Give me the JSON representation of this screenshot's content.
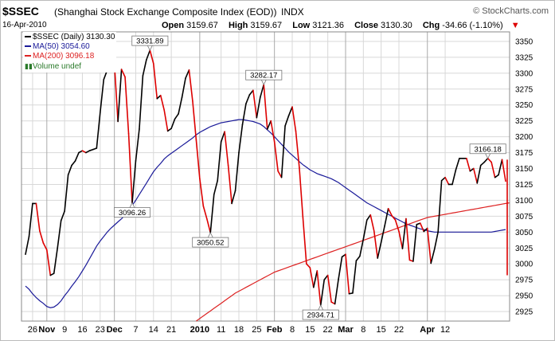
{
  "header": {
    "symbol": "$SSEC",
    "name": "(Shanghai Stock Exchange Composite Index (EOD))",
    "exchange": "INDX",
    "brand": "© StockCharts.com",
    "date": "16-Apr-2010",
    "open_label": "Open",
    "open": "3159.67",
    "high_label": "High",
    "high": "3159.67",
    "low_label": "Low",
    "low": "3121.36",
    "close_label": "Close",
    "close": "3130.30",
    "chg_label": "Chg",
    "chg": "-34.66 (-1.10%)",
    "chg_arrow": "▼"
  },
  "legend": {
    "price": "$SSEC (Daily) 3130.30",
    "ma50": "MA(50) 3054.60",
    "ma200": "MA(200) 3096.18",
    "volume": "Volume undef"
  },
  "chart_data": {
    "type": "line",
    "ylim": [
      2910,
      3365
    ],
    "y_ticks": [
      2925,
      2950,
      2975,
      3000,
      3025,
      3050,
      3075,
      3100,
      3125,
      3150,
      3175,
      3200,
      3225,
      3250,
      3275,
      3300,
      3325,
      3350
    ],
    "x_ticks": [
      {
        "label": "26",
        "i": 2,
        "bold": false
      },
      {
        "label": "Nov",
        "i": 6,
        "bold": true
      },
      {
        "label": "9",
        "i": 11,
        "bold": false
      },
      {
        "label": "16",
        "i": 16,
        "bold": false
      },
      {
        "label": "23",
        "i": 21,
        "bold": false
      },
      {
        "label": "Dec",
        "i": 25,
        "bold": true
      },
      {
        "label": "7",
        "i": 31,
        "bold": false
      },
      {
        "label": "14",
        "i": 36,
        "bold": false
      },
      {
        "label": "21",
        "i": 41,
        "bold": false
      },
      {
        "label": "2010",
        "i": 49,
        "bold": true
      },
      {
        "label": "11",
        "i": 55,
        "bold": false
      },
      {
        "label": "18",
        "i": 60,
        "bold": false
      },
      {
        "label": "25",
        "i": 65,
        "bold": false
      },
      {
        "label": "Feb",
        "i": 70,
        "bold": true
      },
      {
        "label": "8",
        "i": 75,
        "bold": false
      },
      {
        "label": "15",
        "i": 80,
        "bold": false
      },
      {
        "label": "22",
        "i": 85,
        "bold": false
      },
      {
        "label": "Mar",
        "i": 90,
        "bold": true
      },
      {
        "label": "8",
        "i": 95,
        "bold": false
      },
      {
        "label": "15",
        "i": 100,
        "bold": false
      },
      {
        "label": "22",
        "i": 105,
        "bold": false
      },
      {
        "label": "Apr",
        "i": 113,
        "bold": true
      },
      {
        "label": "12",
        "i": 118,
        "bold": false
      }
    ],
    "series": [
      {
        "name": "$SSEC (Daily)",
        "color": "#000000",
        "down_color": "#dd0000",
        "values": [
          3015,
          3043,
          3095,
          3095,
          3052,
          3033,
          3022,
          2982,
          2985,
          3025,
          3068,
          3083,
          3140,
          3155,
          3162,
          3175,
          3178,
          3175,
          3178,
          3180,
          3182,
          3238,
          3290,
          3305,
          3338,
          3315,
          3224,
          3306,
          3294,
          3205,
          3096,
          3162,
          3212,
          3296,
          3321,
          3336,
          3315,
          3260,
          3265,
          3242,
          3209,
          3213,
          3228,
          3236,
          3262,
          3292,
          3305,
          3256,
          3195,
          3134,
          3091,
          3071,
          3049,
          3109,
          3131,
          3192,
          3208,
          3155,
          3095,
          3115,
          3175,
          3219,
          3252,
          3266,
          3273,
          3230,
          3262,
          3282,
          3212,
          3225,
          3192,
          3146,
          3136,
          3217,
          3233,
          3247,
          3209,
          3151,
          3073,
          3000,
          2994,
          2963,
          2989,
          2935,
          2975,
          2982,
          2940,
          2937,
          2976,
          3011,
          3015,
          2953,
          2954,
          3005,
          3012,
          3039,
          3069,
          3077,
          3052,
          3009,
          3034,
          3060,
          3087,
          3076,
          3069,
          3051,
          3024,
          3071,
          3006,
          3004,
          3062,
          3064,
          3051,
          3056,
          3001,
          3023,
          3050,
          3131,
          3136,
          3125,
          3125,
          3148,
          3166,
          3166,
          3166,
          3146,
          3150,
          3127,
          3155,
          3160,
          3166,
          3160,
          3136,
          3140,
          3164,
          3130
        ]
      },
      {
        "name": "MA(50)",
        "color": "#1a1a99",
        "values": [
          2965,
          2960,
          2953,
          2947,
          2942,
          2938,
          2933,
          2931,
          2932,
          2936,
          2942,
          2950,
          2957,
          2965,
          2972,
          2980,
          2989,
          2998,
          3008,
          3018,
          3028,
          3036,
          3043,
          3050,
          3056,
          3061,
          3066,
          3071,
          3077,
          3084,
          3092,
          3100,
          3109,
          3118,
          3127,
          3136,
          3145,
          3152,
          3158,
          3165,
          3170,
          3174,
          3178,
          3182,
          3186,
          3190,
          3194,
          3198,
          3203,
          3207,
          3210,
          3213,
          3216,
          3218,
          3220,
          3222,
          3223,
          3224,
          3225,
          3226,
          3227,
          3227,
          3226,
          3225,
          3224,
          3222,
          3220,
          3216,
          3211,
          3206,
          3200,
          3194,
          3188,
          3182,
          3176,
          3171,
          3166,
          3161,
          3156,
          3152,
          3148,
          3145,
          3142,
          3140,
          3138,
          3136,
          3134,
          3131,
          3128,
          3124,
          3120,
          3116,
          3112,
          3108,
          3104,
          3100,
          3096,
          3093,
          3090,
          3087,
          3084,
          3081,
          3078,
          3075,
          3072,
          3069,
          3066,
          3063,
          3061,
          3059,
          3057,
          3055,
          3054,
          3052,
          3051,
          3050,
          3050,
          3050,
          3050,
          3050,
          3050,
          3050,
          3050,
          3050,
          3050,
          3050,
          3050,
          3050,
          3050,
          3050,
          3050,
          3050,
          3051,
          3052,
          3053,
          3054
        ]
      },
      {
        "name": "MA(200)",
        "color": "#dd2222",
        "values": [
          null,
          null,
          null,
          null,
          null,
          null,
          null,
          null,
          null,
          null,
          null,
          null,
          null,
          null,
          null,
          null,
          null,
          null,
          null,
          null,
          null,
          null,
          null,
          null,
          null,
          null,
          null,
          null,
          null,
          null,
          null,
          null,
          null,
          null,
          null,
          null,
          null,
          null,
          null,
          null,
          null,
          null,
          null,
          null,
          null,
          null,
          null,
          null,
          2910,
          2914,
          2918,
          2922,
          2926,
          2930,
          2934,
          2938,
          2942,
          2946,
          2950,
          2954,
          2957,
          2960,
          2963,
          2966,
          2969,
          2972,
          2975,
          2978,
          2981,
          2984,
          2987,
          2989,
          2991,
          2993,
          2995,
          2997,
          2999,
          3001,
          3003,
          3005,
          3007,
          3009,
          3011,
          3013,
          3015,
          3017,
          3019,
          3021,
          3023,
          3025,
          3027,
          3029,
          3031,
          3033,
          3035,
          3037,
          3039,
          3041,
          3043,
          3045,
          3047,
          3049,
          3051,
          3053,
          3055,
          3057,
          3059,
          3061,
          3063,
          3065,
          3067,
          3069,
          3071,
          3073,
          3074,
          3075,
          3076,
          3077,
          3078,
          3079,
          3080,
          3081,
          3082,
          3083,
          3084,
          3085,
          3086,
          3087,
          3088,
          3089,
          3090,
          3091,
          3092,
          3093,
          3094,
          3095,
          3096
        ]
      }
    ],
    "annotations": [
      {
        "text": "3331.89",
        "i": 35,
        "v": 3336,
        "dir": "up"
      },
      {
        "text": "3096.26",
        "i": 30,
        "v": 3096,
        "dir": "down"
      },
      {
        "text": "3282.17",
        "i": 67,
        "v": 3282,
        "dir": "up"
      },
      {
        "text": "3050.52",
        "i": 52,
        "v": 3049,
        "dir": "down"
      },
      {
        "text": "2934.71",
        "i": 83,
        "v": 2935,
        "dir": "down"
      },
      {
        "text": "3166.18",
        "i": 130,
        "v": 3166,
        "dir": "up"
      }
    ],
    "last_close": 3130.3,
    "last_low": 2982
  }
}
